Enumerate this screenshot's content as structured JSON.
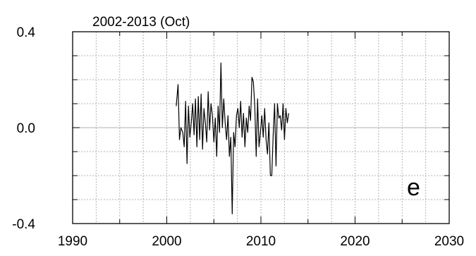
{
  "chart_data": {
    "type": "line",
    "title": "2002-2013 (Oct)",
    "panel_label": "e",
    "xlim": [
      1990,
      2030
    ],
    "ylim": [
      -0.4,
      0.4
    ],
    "x_ticks": [
      1990,
      2000,
      2010,
      2020,
      2030
    ],
    "y_tick_labels": [
      {
        "value": 0.4,
        "label": "0.4"
      },
      {
        "value": 0.0,
        "label": "0.0"
      },
      {
        "value": -0.4,
        "label": "-0.4"
      }
    ],
    "grid": true,
    "grid_style": "dotted",
    "zero_line": true,
    "line_color": "#000000",
    "series": [
      {
        "x": [
          2001.0,
          2001.2,
          2001.35,
          2001.5,
          2001.7,
          2001.85,
          2002.0,
          2002.15,
          2002.3,
          2002.45,
          2002.6,
          2002.75,
          2002.9,
          2003.05,
          2003.2,
          2003.35,
          2003.5,
          2003.65,
          2003.8,
          2003.95,
          2004.1,
          2004.25,
          2004.4,
          2004.55,
          2004.7,
          2004.85,
          2005.0,
          2005.15,
          2005.3,
          2005.45,
          2005.6,
          2005.75,
          2005.9,
          2006.05,
          2006.2,
          2006.35,
          2006.5,
          2006.65,
          2006.8,
          2006.95,
          2007.1,
          2007.25,
          2007.4,
          2007.55,
          2007.7,
          2007.85,
          2008.0,
          2008.15,
          2008.3,
          2008.45,
          2008.6,
          2008.75,
          2008.9,
          2009.05,
          2009.2,
          2009.35,
          2009.5,
          2009.65,
          2009.8,
          2009.95,
          2010.1,
          2010.25,
          2010.4,
          2010.55,
          2010.7,
          2010.85,
          2011.0,
          2011.15,
          2011.3,
          2011.45,
          2011.6,
          2011.75,
          2011.9,
          2012.05,
          2012.2,
          2012.35,
          2012.5,
          2012.65,
          2012.8,
          2012.95
        ],
        "y": [
          0.09,
          0.18,
          -0.05,
          0.0,
          -0.02,
          -0.08,
          0.11,
          -0.15,
          0.09,
          -0.04,
          0.02,
          0.1,
          -0.03,
          0.12,
          -0.08,
          0.13,
          -0.05,
          0.14,
          -0.09,
          0.08,
          0.02,
          -0.06,
          0.15,
          -0.01,
          0.1,
          0.05,
          -0.06,
          0.04,
          -0.12,
          0.09,
          -0.02,
          0.27,
          0.0,
          0.12,
          0.02,
          -0.05,
          0.05,
          -0.12,
          -0.04,
          -0.36,
          -0.02,
          -0.08,
          0.05,
          0.08,
          0.0,
          0.11,
          -0.04,
          0.06,
          -0.08,
          0.04,
          -0.02,
          0.09,
          0.03,
          0.21,
          0.19,
          0.09,
          -0.12,
          0.12,
          -0.08,
          -0.02,
          0.05,
          -0.04,
          0.08,
          -0.05,
          -0.11,
          0.02,
          -0.2,
          -0.2,
          -0.03,
          0.1,
          -0.16,
          0.1,
          0.04,
          0.05,
          -0.01,
          0.1,
          -0.05,
          0.08,
          0.02,
          0.06
        ]
      }
    ]
  }
}
